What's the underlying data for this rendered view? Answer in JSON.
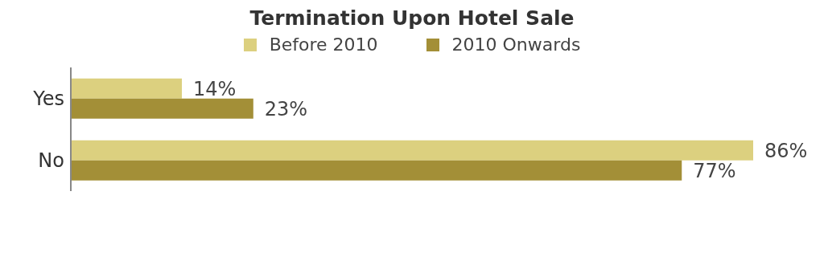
{
  "chart_data": {
    "type": "bar",
    "orientation": "horizontal",
    "title": "Termination Upon Hotel Sale",
    "categories": [
      "Yes",
      "No"
    ],
    "series": [
      {
        "name": "Before 2010",
        "color": "#dcd07f",
        "values": [
          14,
          86
        ],
        "value_labels": [
          "14%",
          "86%"
        ]
      },
      {
        "name": "2010 Onwards",
        "color": "#a38f37",
        "values": [
          23,
          77
        ],
        "value_labels": [
          "23%",
          "77%"
        ]
      }
    ],
    "legend": "top",
    "grid": false
  }
}
